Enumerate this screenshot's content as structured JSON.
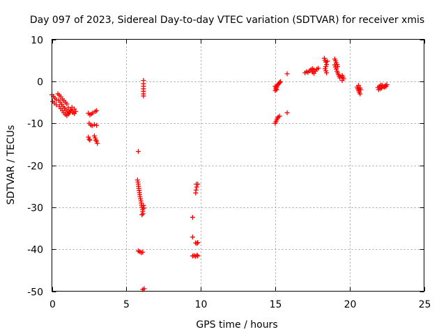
{
  "chart_data": {
    "type": "scatter",
    "title": "Day 097 of 2023, Sidereal Day-to-day VTEC variation (SDTVAR) for receiver xmis",
    "xlabel": "GPS time / hours",
    "ylabel": "SDTVAR / TECUs",
    "xlim": [
      0,
      25
    ],
    "ylim": [
      -50,
      10
    ],
    "xticks": [
      0,
      5,
      10,
      15,
      20,
      25
    ],
    "yticks": [
      -50,
      -40,
      -30,
      -20,
      -10,
      0,
      10
    ],
    "grid": true,
    "marker": "+",
    "series": [
      {
        "name": "SDTVAR",
        "color": "#ff0000",
        "points": [
          [
            0.0,
            -3.2
          ],
          [
            0.1,
            -3.6
          ],
          [
            0.2,
            -4.0
          ],
          [
            0.3,
            -4.4
          ],
          [
            0.05,
            -4.8
          ],
          [
            0.15,
            -5.2
          ],
          [
            0.3,
            -5.6
          ],
          [
            0.4,
            -3.0
          ],
          [
            0.5,
            -3.3
          ],
          [
            0.6,
            -3.7
          ],
          [
            0.7,
            -4.2
          ],
          [
            0.8,
            -4.6
          ],
          [
            0.9,
            -5.0
          ],
          [
            1.0,
            -5.4
          ],
          [
            0.45,
            -4.5
          ],
          [
            0.55,
            -5.0
          ],
          [
            0.65,
            -5.5
          ],
          [
            0.75,
            -6.0
          ],
          [
            0.85,
            -6.4
          ],
          [
            0.95,
            -6.8
          ],
          [
            1.05,
            -7.2
          ],
          [
            1.15,
            -7.5
          ],
          [
            0.5,
            -6.0
          ],
          [
            0.6,
            -6.5
          ],
          [
            0.7,
            -7.0
          ],
          [
            0.8,
            -7.5
          ],
          [
            0.9,
            -7.9
          ],
          [
            1.0,
            -8.2
          ],
          [
            1.1,
            -7.8
          ],
          [
            1.2,
            -7.4
          ],
          [
            1.3,
            -7.0
          ],
          [
            1.4,
            -7.4
          ],
          [
            1.5,
            -7.7
          ],
          [
            1.6,
            -7.2
          ],
          [
            1.5,
            -6.6
          ],
          [
            1.35,
            -6.2
          ],
          [
            1.25,
            -6.8
          ],
          [
            1.1,
            -6.3
          ],
          [
            2.45,
            -7.6
          ],
          [
            2.55,
            -8.0
          ],
          [
            2.65,
            -7.8
          ],
          [
            2.75,
            -7.5
          ],
          [
            2.9,
            -7.2
          ],
          [
            3.0,
            -7.0
          ],
          [
            2.5,
            -10.0
          ],
          [
            2.6,
            -10.4
          ],
          [
            2.7,
            -10.6
          ],
          [
            2.85,
            -10.3
          ],
          [
            3.0,
            -10.5
          ],
          [
            2.45,
            -13.3
          ],
          [
            2.5,
            -13.8
          ],
          [
            2.55,
            -14.0
          ],
          [
            2.85,
            -13.0
          ],
          [
            2.9,
            -13.5
          ],
          [
            2.95,
            -14.0
          ],
          [
            3.0,
            -14.3
          ],
          [
            3.05,
            -14.8
          ],
          [
            5.8,
            -16.7
          ],
          [
            5.75,
            -23.5
          ],
          [
            5.78,
            -24.0
          ],
          [
            5.8,
            -24.5
          ],
          [
            5.82,
            -25.0
          ],
          [
            5.84,
            -25.5
          ],
          [
            5.86,
            -26.0
          ],
          [
            5.88,
            -26.5
          ],
          [
            5.9,
            -27.0
          ],
          [
            5.92,
            -27.5
          ],
          [
            5.95,
            -28.0
          ],
          [
            5.98,
            -28.5
          ],
          [
            6.0,
            -29.0
          ],
          [
            6.02,
            -29.5
          ],
          [
            6.05,
            -30.0
          ],
          [
            6.08,
            -30.5
          ],
          [
            6.1,
            -31.0
          ],
          [
            6.12,
            -31.5
          ],
          [
            6.15,
            -29.6
          ],
          [
            6.18,
            -30.2
          ],
          [
            6.05,
            -31.8
          ],
          [
            5.8,
            -40.4
          ],
          [
            5.9,
            -40.6
          ],
          [
            6.0,
            -40.8
          ],
          [
            6.1,
            -40.7
          ],
          [
            6.15,
            0.2
          ],
          [
            6.15,
            -0.6
          ],
          [
            6.15,
            -1.2
          ],
          [
            6.15,
            -1.8
          ],
          [
            6.15,
            -2.4
          ],
          [
            6.15,
            -3.0
          ],
          [
            6.15,
            -3.5
          ],
          [
            6.1,
            -49.6
          ],
          [
            6.2,
            -49.4
          ],
          [
            9.45,
            -32.4
          ],
          [
            9.45,
            -37.1
          ],
          [
            9.45,
            -41.6
          ],
          [
            9.55,
            -41.5
          ],
          [
            9.65,
            -41.7
          ],
          [
            9.75,
            -41.4
          ],
          [
            9.8,
            -41.6
          ],
          [
            9.65,
            -38.5
          ],
          [
            9.75,
            -38.6
          ],
          [
            9.8,
            -38.4
          ],
          [
            9.7,
            -24.5
          ],
          [
            9.72,
            -25.2
          ],
          [
            9.68,
            -25.9
          ],
          [
            9.66,
            -26.6
          ],
          [
            9.8,
            -24.5
          ],
          [
            15.0,
            -2.2
          ],
          [
            15.05,
            -1.8
          ],
          [
            15.1,
            -1.4
          ],
          [
            15.15,
            -1.0
          ],
          [
            15.2,
            -0.7
          ],
          [
            15.25,
            -0.5
          ],
          [
            15.3,
            -0.3
          ],
          [
            15.35,
            -0.1
          ],
          [
            15.0,
            -1.2
          ],
          [
            15.05,
            -1.5
          ],
          [
            15.1,
            -2.0
          ],
          [
            15.8,
            1.8
          ],
          [
            15.0,
            -10.0
          ],
          [
            15.05,
            -9.6
          ],
          [
            15.1,
            -9.2
          ],
          [
            15.15,
            -8.8
          ],
          [
            15.2,
            -8.5
          ],
          [
            15.3,
            -8.3
          ],
          [
            15.8,
            -7.5
          ],
          [
            17.0,
            2.0
          ],
          [
            17.1,
            2.3
          ],
          [
            17.2,
            2.1
          ],
          [
            17.3,
            2.5
          ],
          [
            17.4,
            2.8
          ],
          [
            17.5,
            3.0
          ],
          [
            17.6,
            2.7
          ],
          [
            17.7,
            2.4
          ],
          [
            17.8,
            2.9
          ],
          [
            17.9,
            3.1
          ],
          [
            17.5,
            2.2
          ],
          [
            17.6,
            1.9
          ],
          [
            18.3,
            5.5
          ],
          [
            18.35,
            5.0
          ],
          [
            18.4,
            4.6
          ],
          [
            18.45,
            4.0
          ],
          [
            18.4,
            3.5
          ],
          [
            18.35,
            3.0
          ],
          [
            18.4,
            2.5
          ],
          [
            18.45,
            2.0
          ],
          [
            18.5,
            4.8
          ],
          [
            19.0,
            5.3
          ],
          [
            19.05,
            4.9
          ],
          [
            19.1,
            4.4
          ],
          [
            19.0,
            3.9
          ],
          [
            19.05,
            3.4
          ],
          [
            19.1,
            2.9
          ],
          [
            19.15,
            2.4
          ],
          [
            19.2,
            2.0
          ],
          [
            19.25,
            1.6
          ],
          [
            19.3,
            1.2
          ],
          [
            19.35,
            0.8
          ],
          [
            19.2,
            3.5
          ],
          [
            19.15,
            4.0
          ],
          [
            19.5,
            1.4
          ],
          [
            19.55,
            1.0
          ],
          [
            19.6,
            0.6
          ],
          [
            19.5,
            0.2
          ],
          [
            20.5,
            -1.4
          ],
          [
            20.55,
            -1.8
          ],
          [
            20.6,
            -2.2
          ],
          [
            20.65,
            -2.6
          ],
          [
            20.7,
            -3.0
          ],
          [
            20.75,
            -2.0
          ],
          [
            20.6,
            -1.0
          ],
          [
            20.7,
            -1.6
          ],
          [
            21.9,
            -1.5
          ],
          [
            22.0,
            -1.2
          ],
          [
            22.1,
            -0.9
          ],
          [
            22.2,
            -1.0
          ],
          [
            22.3,
            -1.3
          ],
          [
            22.4,
            -1.0
          ],
          [
            22.5,
            -0.8
          ],
          [
            21.95,
            -2.0
          ],
          [
            22.05,
            -1.8
          ],
          [
            22.15,
            -1.6
          ],
          [
            22.35,
            -1.4
          ],
          [
            22.45,
            -1.2
          ]
        ]
      }
    ]
  }
}
